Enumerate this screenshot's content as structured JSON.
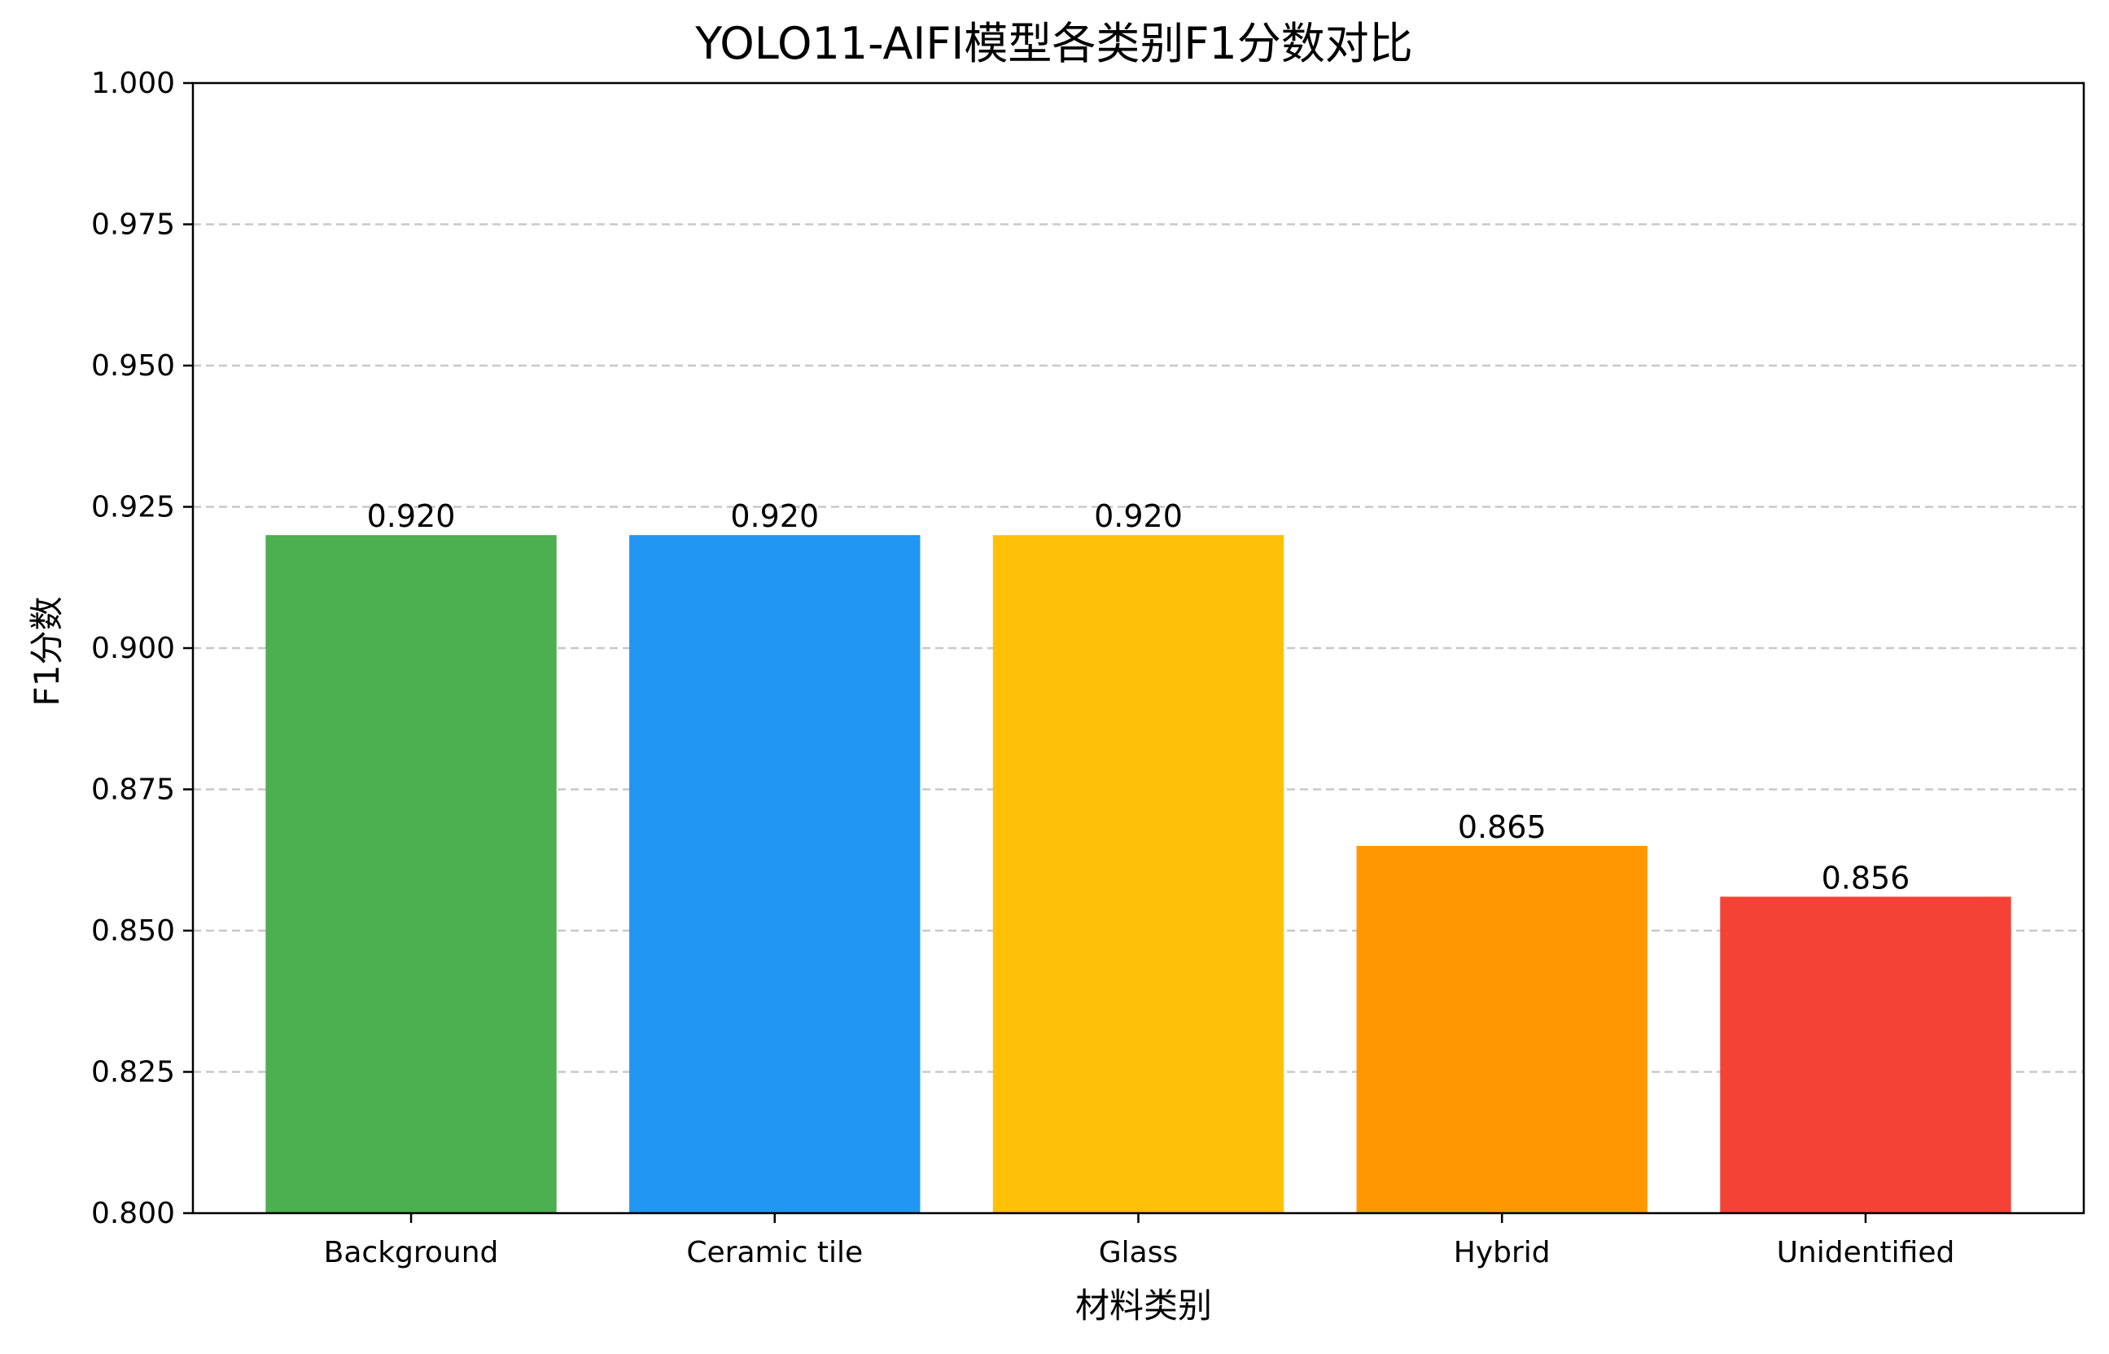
{
  "chart_data": {
    "type": "bar",
    "title": "YOLO11-AIFI模型各类别F1分数对比",
    "xlabel": "材料类别",
    "ylabel": "F1分数",
    "categories": [
      "Background",
      "Ceramic tile",
      "Glass",
      "Hybrid",
      "Unidentified"
    ],
    "values": [
      0.92,
      0.92,
      0.92,
      0.865,
      0.856
    ],
    "value_labels": [
      "0.920",
      "0.920",
      "0.920",
      "0.865",
      "0.856"
    ],
    "colors": [
      "#4caf50",
      "#2196f3",
      "#ffc107",
      "#ff9800",
      "#f44336"
    ],
    "ylim": [
      0.8,
      1.0
    ],
    "yticks": [
      0.8,
      0.825,
      0.85,
      0.875,
      0.9,
      0.925,
      0.95,
      0.975,
      1.0
    ],
    "ytick_labels": [
      "0.800",
      "0.825",
      "0.850",
      "0.875",
      "0.900",
      "0.925",
      "0.950",
      "0.975",
      "1.000"
    ],
    "grid": "y-dashed",
    "legend": "none"
  }
}
